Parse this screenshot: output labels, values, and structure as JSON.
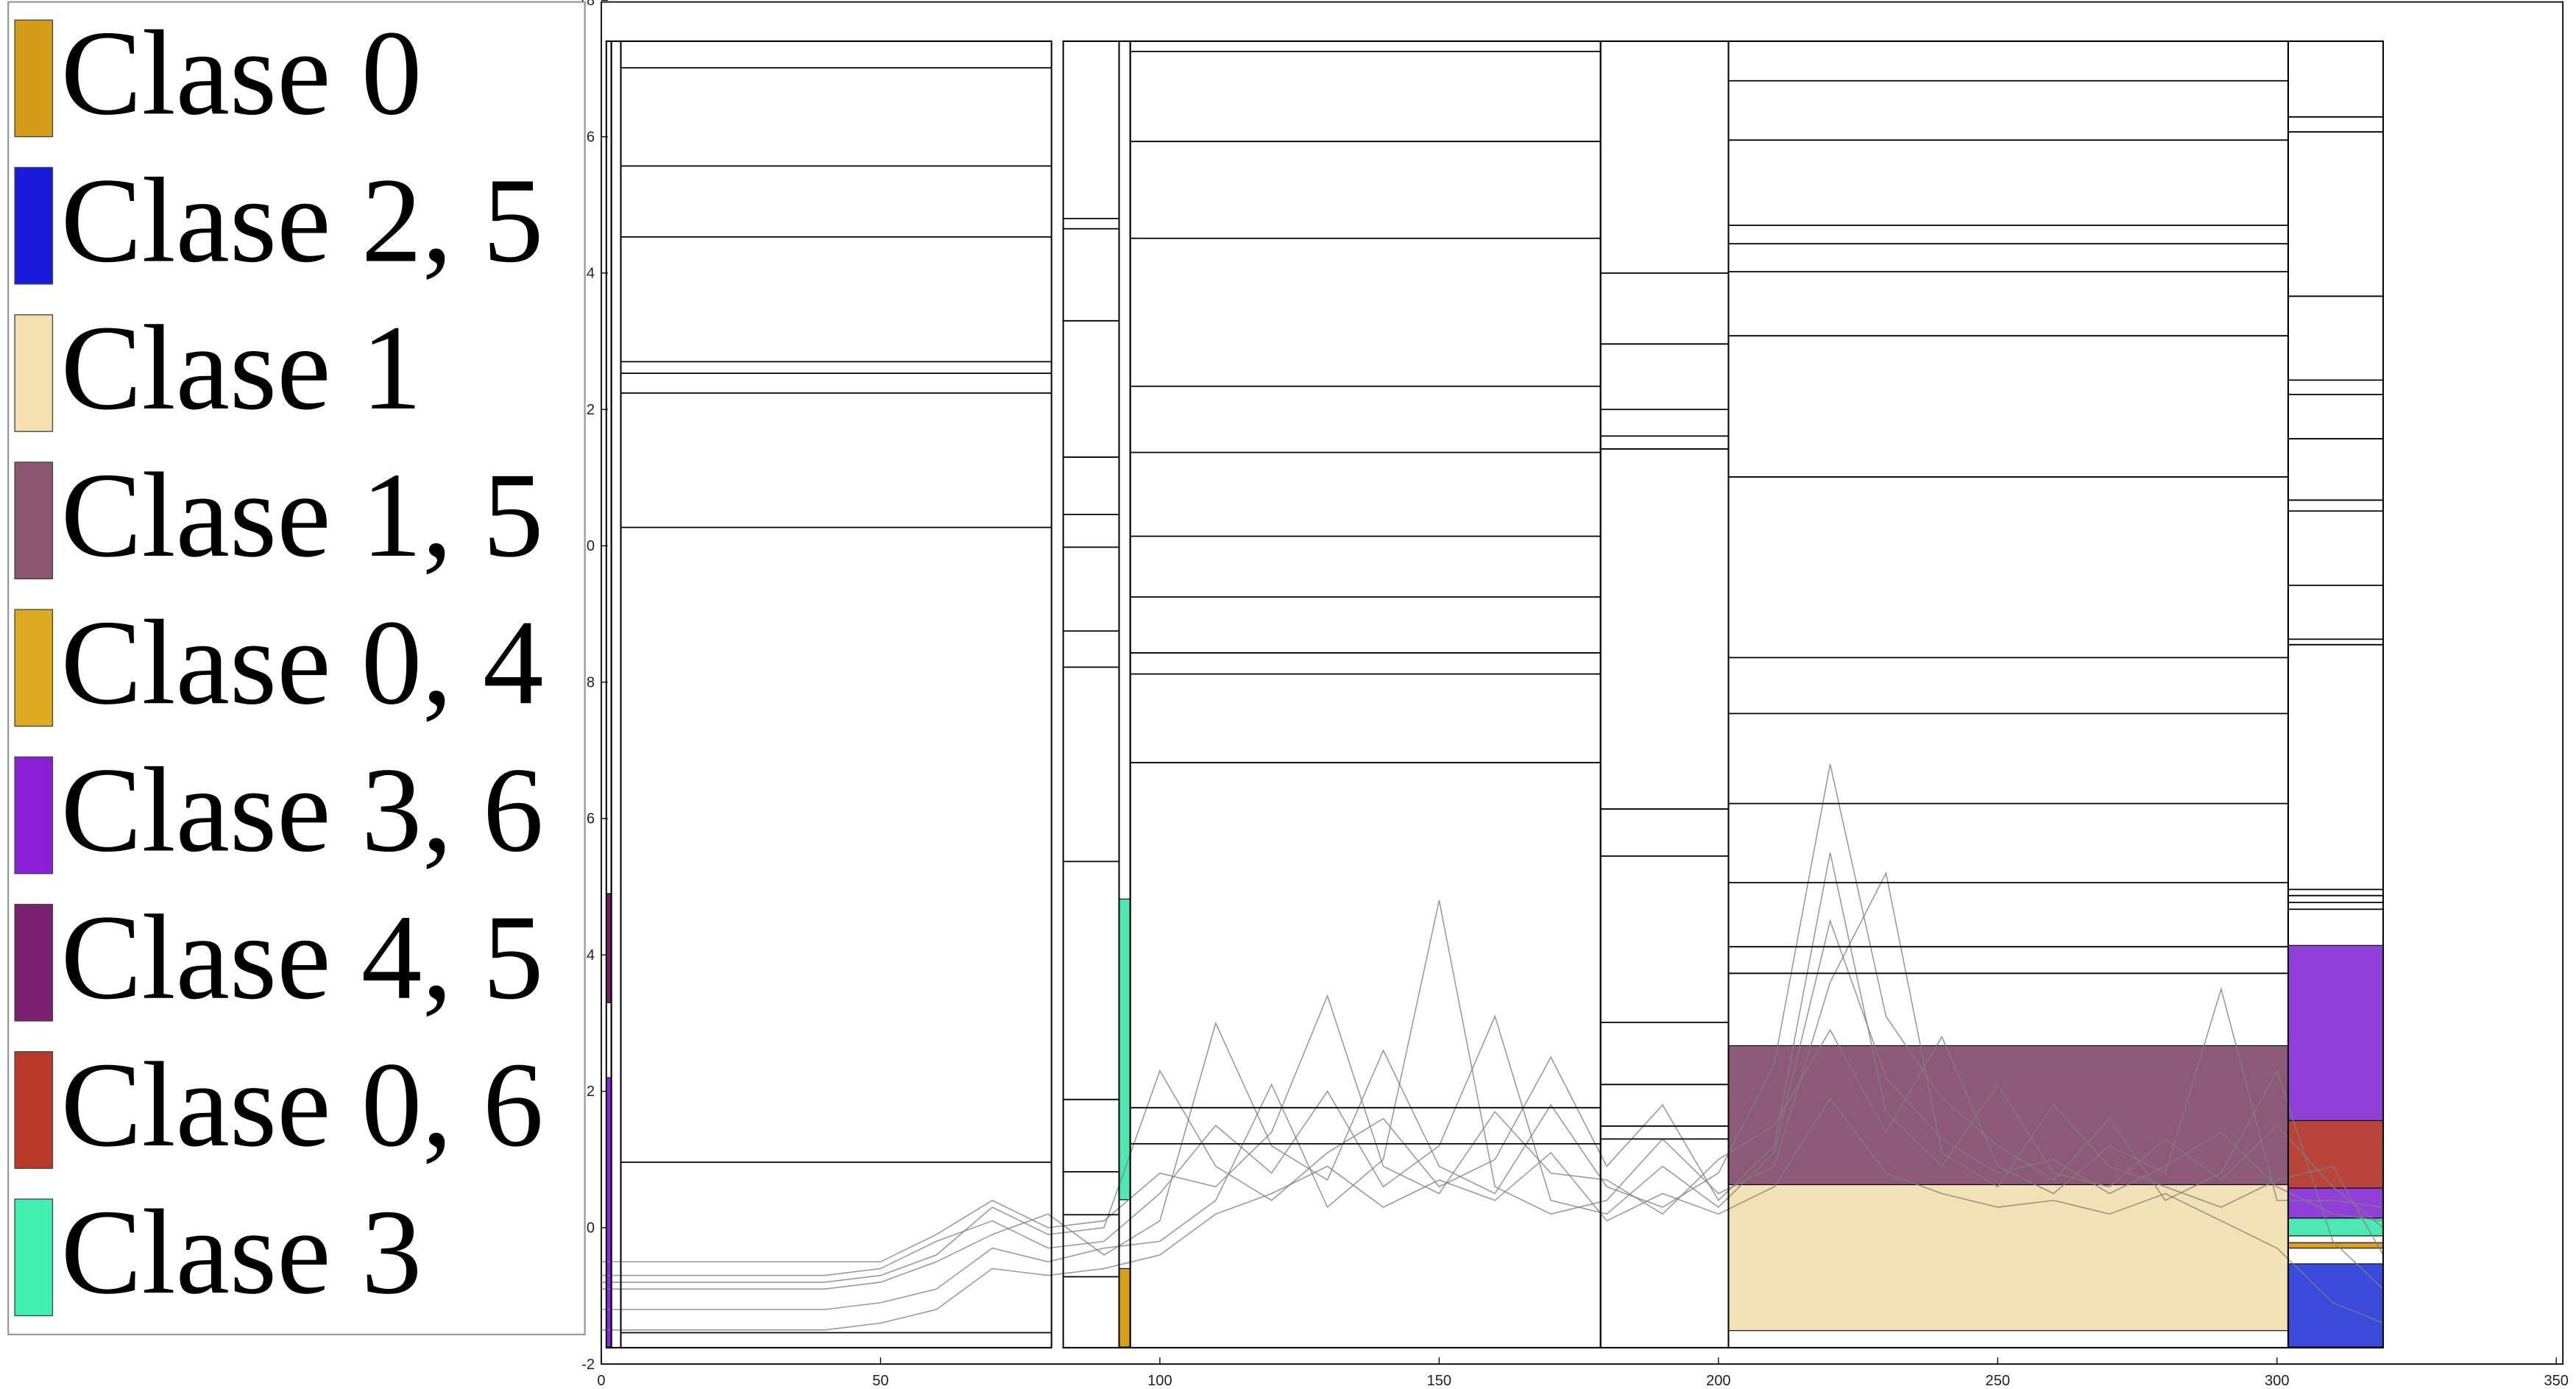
{
  "chart_data": {
    "type": "line",
    "xlim": [
      0,
      350
    ],
    "xticks": [
      0,
      50,
      100,
      150,
      200,
      250,
      300,
      350
    ],
    "ylim": [
      -2,
      18
    ],
    "yticks": [
      -2,
      0,
      2,
      4,
      6,
      8,
      10,
      12,
      14,
      16,
      18
    ],
    "line_color": "#808080",
    "legend": [
      {
        "name": "Clase 0",
        "color": "#d39d1a"
      },
      {
        "name": "Clase 2, 5",
        "color": "#1a1adb"
      },
      {
        "name": "Clase 1",
        "color": "#f5e1b0"
      },
      {
        "name": "Clase 1, 5",
        "color": "#8c5570"
      },
      {
        "name": "Clase 0, 4",
        "color": "#ddaa22"
      },
      {
        "name": "Clase 3, 6",
        "color": "#8a1fd6"
      },
      {
        "name": "Clase 4, 5",
        "color": "#7a2070"
      },
      {
        "name": "Clase 0, 6",
        "color": "#b83a2a"
      },
      {
        "name": "Clase 3",
        "color": "#40f0b0"
      }
    ],
    "segments": [
      [
        0.9,
        1.8
      ],
      [
        1.8,
        3.5
      ],
      [
        3.5,
        80.6
      ],
      [
        82.7,
        92.7
      ],
      [
        92.7,
        94.7
      ],
      [
        94.7,
        178.9
      ],
      [
        178.9,
        201.8
      ],
      [
        201.8,
        302
      ],
      [
        302,
        319
      ]
    ],
    "segment_ylim": [
      -1.76,
      17.4
    ],
    "regions": [
      {
        "x0": 0.9,
        "x1": 1.8,
        "y0": -1.75,
        "y1": 2.2,
        "color": "#8a2be2"
      },
      {
        "x0": 0.9,
        "x1": 1.8,
        "y0": 3.3,
        "y1": 4.9,
        "color": "#7a2070"
      },
      {
        "x0": 92.7,
        "x1": 94.7,
        "y0": 0.41,
        "y1": 4.82,
        "color": "#4de8b4"
      },
      {
        "x0": 92.7,
        "x1": 94.7,
        "y0": -1.75,
        "y1": -0.6,
        "color": "#d9a020"
      },
      {
        "x0": 201.8,
        "x1": 302,
        "y0": 0.63,
        "y1": 2.67,
        "color": "#8c5a78"
      },
      {
        "x0": 201.8,
        "x1": 302,
        "y0": -1.51,
        "y1": 0.63,
        "color": "#f3e1b6"
      },
      {
        "x0": 302,
        "x1": 319,
        "y0": 1.57,
        "y1": 4.14,
        "color": "#9040d8"
      },
      {
        "x0": 302,
        "x1": 319,
        "y0": 0.58,
        "y1": 1.57,
        "color": "#b8443a"
      },
      {
        "x0": 302,
        "x1": 319,
        "y0": 0.14,
        "y1": 0.58,
        "color": "#9040d8"
      },
      {
        "x0": 302,
        "x1": 319,
        "y0": -0.12,
        "y1": 0.14,
        "color": "#4de8b4"
      },
      {
        "x0": 302,
        "x1": 319,
        "y0": -0.3,
        "y1": -0.22,
        "color": "#d9a020"
      },
      {
        "x0": 302,
        "x1": 319,
        "y0": -1.75,
        "y1": -0.53,
        "color": "#3a4bdc"
      }
    ],
    "thresholds": [
      {
        "x0": 3.5,
        "x1": 80.6,
        "y": [
          17.01,
          15.57,
          14.53,
          12.7,
          12.53,
          12.24,
          10.27,
          0.96,
          -1.54
        ]
      },
      {
        "x0": 82.7,
        "x1": 92.7,
        "y": [
          14.8,
          14.65,
          13.3,
          11.3,
          10.46,
          9.98,
          8.75,
          8.22,
          5.37,
          1.88,
          0.82,
          0.19,
          -0.72
        ]
      },
      {
        "x0": 94.7,
        "x1": 178.9,
        "y": [
          17.25,
          15.93,
          14.51,
          12.34,
          11.37,
          10.14,
          9.25,
          8.43,
          8.12,
          6.82,
          1.76,
          1.23
        ]
      },
      {
        "x0": 178.9,
        "x1": 201.8,
        "y": [
          14.0,
          12.96,
          12.0,
          11.61,
          11.42,
          6.14,
          5.45,
          3.01,
          2.1,
          1.49,
          1.3
        ]
      },
      {
        "x0": 201.8,
        "x1": 302,
        "y": [
          16.82,
          15.95,
          14.7,
          14.43,
          14.02,
          13.08,
          11.01,
          8.36,
          7.54,
          6.22,
          5.06,
          4.12,
          3.73
        ]
      },
      {
        "x0": 302,
        "x1": 319,
        "y": [
          16.29,
          16.07,
          13.66,
          12.43,
          12.22,
          11.57,
          10.67,
          10.51,
          9.42,
          8.63,
          8.55,
          4.96,
          4.87,
          4.77,
          4.67
        ]
      }
    ],
    "x": [
      0,
      10,
      20,
      30,
      40,
      50,
      60,
      70,
      80,
      90,
      100,
      110,
      120,
      130,
      140,
      150,
      160,
      170,
      180,
      190,
      200,
      210,
      220,
      230,
      240,
      250,
      260,
      270,
      280,
      290,
      300,
      310,
      319
    ],
    "series": [
      {
        "values": [
          -0.7,
          -0.7,
          -0.7,
          -0.7,
          -0.7,
          -0.6,
          -0.2,
          0.1,
          -0.3,
          -0.2,
          0.5,
          1.5,
          0.8,
          2.0,
          0.6,
          1.2,
          3.1,
          0.4,
          0.2,
          0.9,
          0.3,
          1.1,
          4.5,
          2.2,
          1.3,
          0.8,
          1.0,
          0.5,
          0.9,
          1.4,
          0.6,
          0.2,
          0.1
        ]
      },
      {
        "values": [
          -0.9,
          -0.9,
          -0.9,
          -0.9,
          -0.9,
          -0.8,
          -0.5,
          -0.1,
          0.2,
          -0.4,
          0.1,
          3.0,
          1.2,
          0.7,
          2.6,
          0.9,
          0.5,
          1.8,
          0.6,
          0.3,
          0.8,
          2.4,
          6.8,
          3.1,
          1.9,
          1.2,
          0.7,
          1.6,
          0.4,
          0.8,
          2.3,
          -0.2,
          -0.9
        ]
      },
      {
        "values": [
          -1.2,
          -1.2,
          -1.2,
          -1.2,
          -1.2,
          -1.1,
          -0.9,
          -0.3,
          -0.5,
          -0.3,
          -0.2,
          0.4,
          2.1,
          0.3,
          1.0,
          4.8,
          0.6,
          0.2,
          0.4,
          1.3,
          0.5,
          0.9,
          3.6,
          5.2,
          1.1,
          0.6,
          1.8,
          0.9,
          0.6,
          0.3,
          0.7,
          0.9,
          -0.4
        ]
      },
      {
        "values": [
          -0.5,
          -0.5,
          -0.5,
          -0.5,
          -0.5,
          -0.5,
          -0.1,
          0.4,
          0.0,
          0.1,
          0.8,
          0.6,
          1.4,
          3.4,
          0.9,
          0.5,
          1.7,
          0.8,
          0.7,
          0.2,
          1.0,
          1.5,
          2.9,
          1.4,
          2.8,
          0.9,
          0.5,
          1.2,
          0.8,
          3.5,
          0.4,
          0.4,
          0.3
        ]
      },
      {
        "values": [
          -1.5,
          -1.5,
          -1.5,
          -1.5,
          -1.5,
          -1.4,
          -1.2,
          -0.6,
          -0.7,
          -0.6,
          -0.4,
          0.2,
          0.5,
          0.9,
          0.3,
          0.7,
          0.4,
          1.1,
          0.1,
          0.5,
          0.2,
          0.6,
          1.9,
          0.8,
          0.5,
          0.3,
          0.4,
          0.2,
          0.5,
          0.1,
          -0.3,
          -1.1,
          -1.4
        ]
      },
      {
        "values": [
          -0.8,
          -0.8,
          -0.8,
          -0.8,
          -0.8,
          -0.7,
          -0.4,
          0.3,
          -0.1,
          0.0,
          2.3,
          0.9,
          0.4,
          1.1,
          1.6,
          0.6,
          1.0,
          2.5,
          0.9,
          1.8,
          0.4,
          1.2,
          5.5,
          1.7,
          0.9,
          2.1,
          0.8,
          0.6,
          1.3,
          0.7,
          1.5,
          0.6,
          0.0
        ]
      }
    ]
  }
}
